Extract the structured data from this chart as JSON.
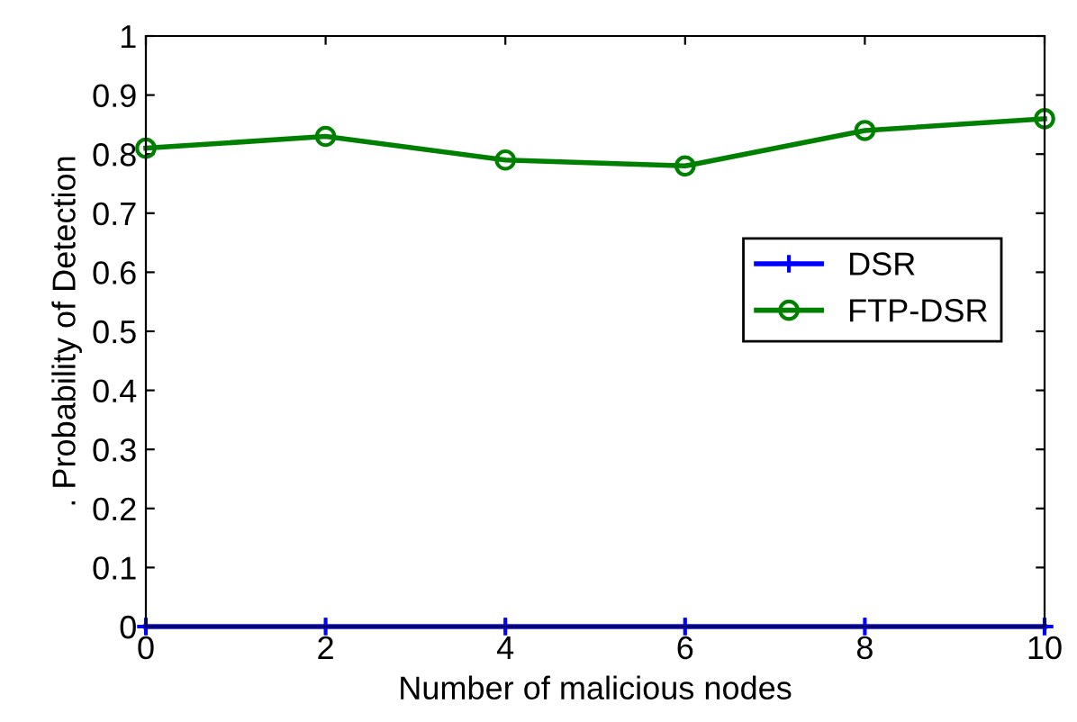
{
  "chart_data": {
    "type": "line",
    "xlabel": "Number of malicious nodes",
    "ylabel": ". Probability of Detection",
    "x": [
      0,
      2,
      4,
      6,
      8,
      10
    ],
    "series": [
      {
        "name": "DSR",
        "color": "#0000ff",
        "values": [
          0,
          0,
          0,
          0,
          0,
          0
        ],
        "marker": "cross"
      },
      {
        "name": "FTP-DSR",
        "color": "#008000",
        "values": [
          0.81,
          0.83,
          0.79,
          0.78,
          0.84,
          0.86
        ],
        "marker": "circle"
      }
    ],
    "xlim": [
      0,
      10
    ],
    "xticks": [
      0,
      2,
      4,
      6,
      8,
      10
    ],
    "ylim": [
      0,
      1
    ],
    "yticks": [
      0,
      0.1,
      0.2,
      0.3,
      0.4,
      0.5,
      0.6,
      0.7,
      0.8,
      0.9,
      1
    ],
    "grid": false,
    "legend": "right",
    "line_style": "solid"
  }
}
